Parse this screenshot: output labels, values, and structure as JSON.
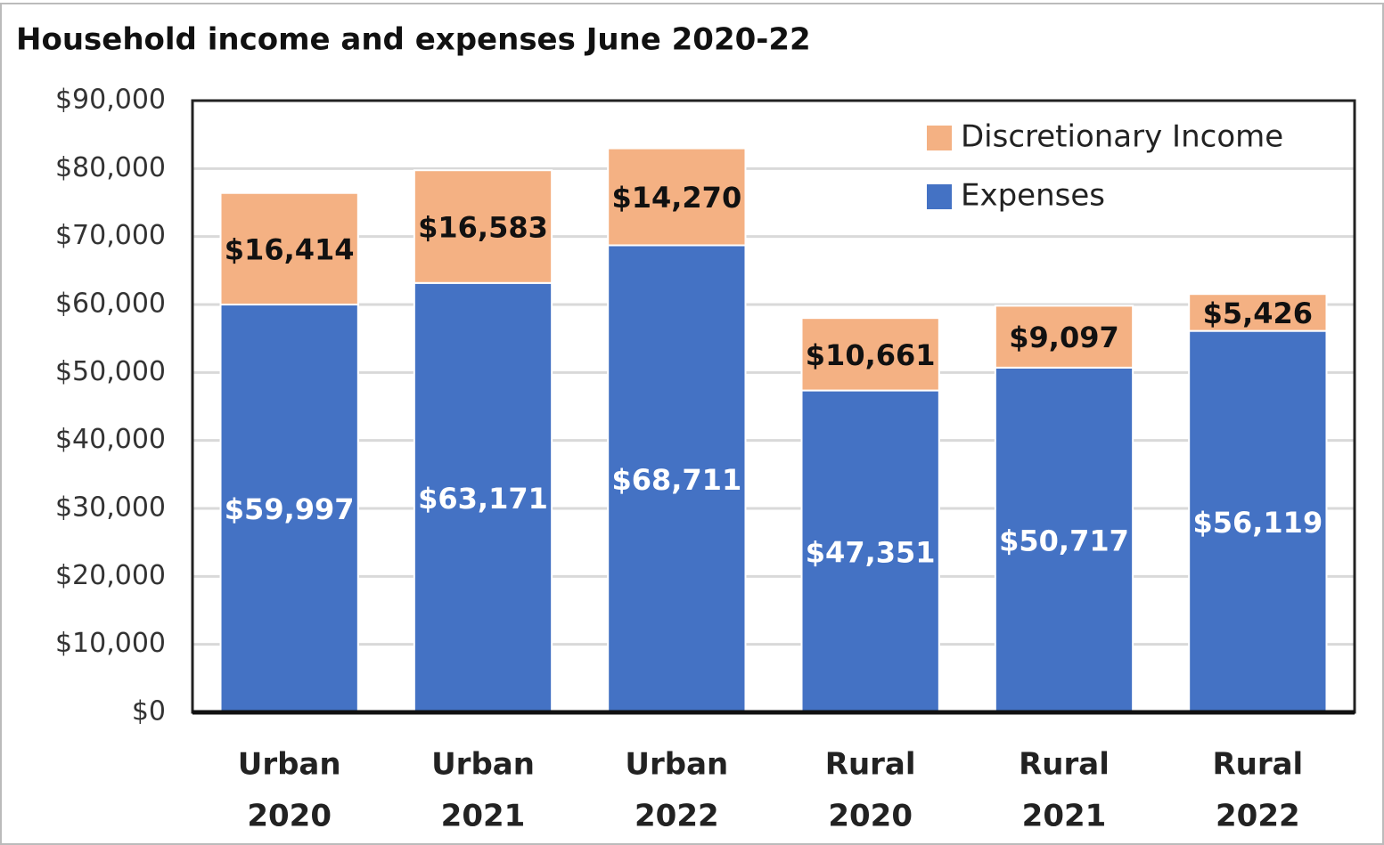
{
  "chart_data": {
    "type": "stacked_bar",
    "title": "Household income and expenses June 2020-22",
    "categories": [
      [
        "Urban",
        "2020"
      ],
      [
        "Urban",
        "2021"
      ],
      [
        "Urban",
        "2022"
      ],
      [
        "Rural",
        "2020"
      ],
      [
        "Rural",
        "2021"
      ],
      [
        "Rural",
        "2022"
      ]
    ],
    "series": [
      {
        "name": "Expenses",
        "color": "#4472c4",
        "label_color": "#ffffff",
        "values": [
          59997,
          63171,
          68711,
          47351,
          50717,
          56119
        ],
        "value_labels": [
          "$59,997",
          "$63,171",
          "$68,711",
          "$47,351",
          "$50,717",
          "$56,119"
        ]
      },
      {
        "name": "Discretionary Income",
        "color": "#f4b183",
        "label_color": "#111111",
        "values": [
          16414,
          16583,
          14270,
          10661,
          9097,
          5426
        ],
        "value_labels": [
          "$16,414",
          "$16,583",
          "$14,270",
          "$10,661",
          "$9,097",
          "$5,426"
        ]
      }
    ],
    "ylim": [
      0,
      90000
    ],
    "yticks": [
      {
        "value": 0,
        "label": "$0"
      },
      {
        "value": 10000,
        "label": "$10,000"
      },
      {
        "value": 20000,
        "label": "$20,000"
      },
      {
        "value": 30000,
        "label": "$30,000"
      },
      {
        "value": 40000,
        "label": "$40,000"
      },
      {
        "value": 50000,
        "label": "$50,000"
      },
      {
        "value": 60000,
        "label": "$60,000"
      },
      {
        "value": 70000,
        "label": "$70,000"
      },
      {
        "value": 80000,
        "label": "$80,000"
      },
      {
        "value": 90000,
        "label": "$90,000"
      }
    ],
    "grid": true,
    "legend": "upper right"
  }
}
